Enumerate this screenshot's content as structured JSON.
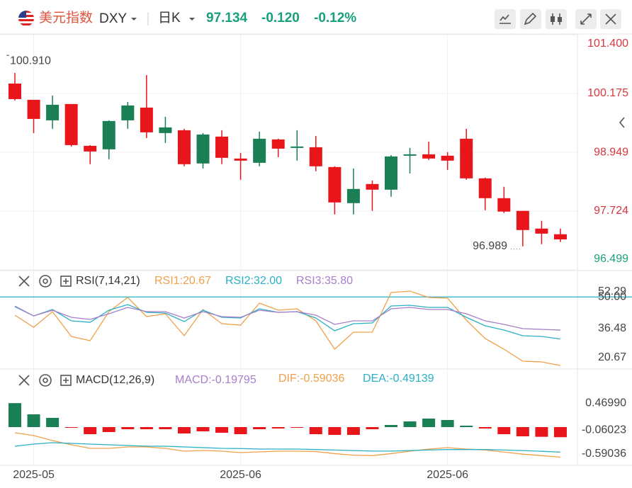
{
  "header": {
    "name": "美元指数",
    "symbol": "DXY",
    "period": "日K",
    "price": "97.134",
    "change": "-0.120",
    "change_pct": "-0.12%"
  },
  "chart_data": [
    {
      "type": "candlestick",
      "up_color": "#1b7f56",
      "down_color": "#e8151b",
      "grid": true,
      "ylim": [
        96.499,
        101.4
      ],
      "yticks": [
        {
          "value": 101.4,
          "label": "101.400"
        },
        100.175,
        98.949,
        97.724,
        96.499
      ],
      "annotations": [
        {
          "value": 100.91,
          "label": "100.910"
        },
        {
          "value": 96.989,
          "label": "96.989"
        }
      ],
      "open": [
        100.382,
        100.043,
        99.615,
        99.955,
        99.084,
        99.011,
        99.615,
        99.881,
        99.35,
        99.409,
        98.716,
        99.276,
        98.819,
        98.73,
        99.217,
        99.04,
        99.055,
        98.642,
        97.89,
        98.288,
        98.17,
        98.878,
        98.907,
        98.878,
        99.232,
        98.406,
        97.993,
        97.728,
        97.359,
        97.241
      ],
      "high": [
        100.604,
        100.043,
        100.132,
        99.955,
        99.099,
        99.615,
        99.999,
        100.559,
        99.689,
        99.438,
        99.35,
        99.409,
        98.937,
        99.379,
        99.232,
        99.409,
        99.291,
        98.657,
        98.612,
        98.362,
        98.893,
        99.04,
        99.173,
        98.952,
        99.438,
        98.421,
        98.229,
        97.728,
        97.521,
        97.359
      ],
      "low": [
        100.028,
        99.35,
        99.438,
        99.07,
        98.701,
        98.804,
        99.438,
        99.247,
        99.143,
        98.657,
        98.612,
        98.701,
        98.376,
        98.657,
        98.848,
        98.775,
        98.553,
        97.654,
        97.654,
        97.728,
        98.022,
        98.509,
        98.789,
        98.583,
        98.376,
        97.742,
        97.683,
        96.989,
        97.034,
        97.079
      ],
      "close": [
        100.058,
        99.645,
        99.94,
        99.099,
        98.966,
        99.601,
        99.925,
        99.365,
        99.468,
        98.701,
        99.32,
        98.834,
        98.775,
        99.232,
        99.025,
        99.07,
        98.657,
        97.904,
        98.185,
        98.17,
        98.863,
        98.907,
        98.819,
        98.775,
        98.406,
        97.993,
        97.713,
        97.329,
        97.254,
        97.134
      ]
    },
    {
      "type": "line",
      "title": "RSI(7,14,21)",
      "grid": false,
      "ylim": [
        19.46,
        60.37
      ],
      "yticks": [
        52.29,
        36.48,
        20.67
      ],
      "reference_line": {
        "value": 50,
        "label": "50.00",
        "color": "#2ab0c5"
      },
      "series": [
        {
          "name": "RSI1:20.67",
          "color": "#f0a04b",
          "values": [
            42.19,
            37.03,
            43.7,
            33.09,
            31.28,
            43.7,
            49.76,
            41.58,
            42.79,
            33.4,
            44.61,
            38.55,
            37.94,
            47.34,
            44.31,
            44.91,
            39.76,
            27.64,
            34.91,
            34.91,
            51.88,
            52.49,
            49.76,
            49.46,
            40.06,
            32.19,
            27.64,
            22.49,
            22.19,
            20.67
          ]
        },
        {
          "name": "RSI2:32.00",
          "color": "#2ab0c5",
          "values": [
            45.82,
            41.88,
            44.61,
            39.76,
            39.15,
            44.31,
            46.73,
            43.4,
            43.09,
            39.46,
            44.31,
            41.28,
            40.97,
            44.91,
            43.4,
            43.7,
            40.97,
            35.52,
            38.55,
            38.85,
            46.12,
            46.43,
            45.52,
            45.52,
            41.28,
            37.64,
            35.82,
            33.4,
            33.09,
            32.0
          ]
        },
        {
          "name": "RSI3:35.80",
          "color": "#a77fc9",
          "values": [
            46.12,
            41.88,
            44.31,
            41.28,
            40.37,
            42.79,
            45.52,
            43.7,
            43.7,
            40.97,
            43.7,
            41.58,
            41.28,
            44.31,
            43.4,
            43.7,
            42.19,
            38.25,
            39.76,
            39.76,
            44.91,
            45.52,
            44.61,
            44.61,
            42.79,
            39.76,
            38.25,
            36.43,
            36.13,
            35.8
          ]
        }
      ]
    },
    {
      "type": "combo",
      "title": "MACD(12,26,9)",
      "grid": false,
      "ylim": [
        -0.736,
        1.111
      ],
      "yticks": [
        {
          "value": 0.4699,
          "label": "0.46990"
        },
        {
          "value": -0.06023,
          "label": "-0.06023"
        },
        {
          "value": -0.59036,
          "label": "-0.59036"
        }
      ],
      "up_color": "#1b7f56",
      "down_color": "#e8151b",
      "categories": [
        null,
        "2025-05",
        null,
        null,
        null,
        null,
        null,
        null,
        null,
        null,
        null,
        null,
        "2025-06",
        null,
        null,
        null,
        null,
        null,
        null,
        null,
        null,
        null,
        null,
        "2025-06",
        null,
        null,
        null,
        null,
        null,
        null
      ],
      "series": [
        {
          "name": "MACD:-0.19795",
          "color": "#a77fc9",
          "kind": "bar",
          "values": [
            0.4699,
            0.25,
            0.181,
            -0.014,
            -0.139,
            -0.097,
            -0.042,
            -0.042,
            -0.042,
            -0.125,
            -0.083,
            -0.111,
            -0.139,
            -0.042,
            -0.028,
            -0.014,
            -0.139,
            -0.153,
            -0.153,
            -0.042,
            0.042,
            0.111,
            0.167,
            0.139,
            0.028,
            -0.028,
            -0.139,
            -0.181,
            -0.19,
            -0.19795
          ]
        },
        {
          "name": "DIF:-0.59036",
          "color": "#f0a04b",
          "kind": "line",
          "values": [
            -0.111,
            -0.167,
            -0.264,
            -0.347,
            -0.417,
            -0.417,
            -0.389,
            -0.389,
            -0.417,
            -0.472,
            -0.458,
            -0.472,
            -0.5,
            -0.486,
            -0.472,
            -0.472,
            -0.48,
            -0.52,
            -0.55,
            -0.56,
            -0.52,
            -0.472,
            -0.431,
            -0.403,
            -0.431,
            -0.45,
            -0.49,
            -0.53,
            -0.56,
            -0.59036
          ]
        },
        {
          "name": "DEA:-0.49139",
          "color": "#2ab0c5",
          "kind": "line",
          "values": [
            -0.375,
            -0.333,
            -0.306,
            -0.319,
            -0.333,
            -0.347,
            -0.361,
            -0.375,
            -0.375,
            -0.389,
            -0.403,
            -0.417,
            -0.42,
            -0.43,
            -0.43,
            -0.43,
            -0.44,
            -0.45,
            -0.46,
            -0.47,
            -0.47,
            -0.46,
            -0.45,
            -0.44,
            -0.44,
            -0.44,
            -0.45,
            -0.46,
            -0.475,
            -0.49139
          ]
        }
      ]
    }
  ]
}
